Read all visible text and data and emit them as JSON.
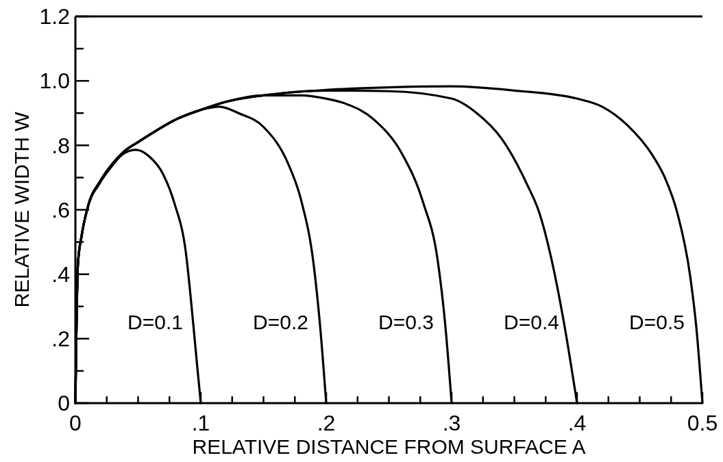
{
  "chart_data": {
    "type": "line",
    "xlabel": "RELATIVE DISTANCE FROM SURFACE A",
    "ylabel": "RELATIVE WIDTH W",
    "xlim": [
      0,
      0.5
    ],
    "ylim": [
      0,
      1.2
    ],
    "xticks": [
      0,
      {
        "value": 0.025,
        "label": null
      },
      {
        "value": 0.05,
        "label": null
      },
      {
        "value": 0.075,
        "label": null
      },
      {
        "value": 0.1,
        "label": ".1"
      },
      {
        "value": 0.125,
        "label": null
      },
      {
        "value": 0.15,
        "label": null
      },
      {
        "value": 0.175,
        "label": null
      },
      {
        "value": 0.2,
        "label": ".2"
      },
      {
        "value": 0.225,
        "label": null
      },
      {
        "value": 0.25,
        "label": null
      },
      {
        "value": 0.275,
        "label": null
      },
      {
        "value": 0.3,
        "label": ".3"
      },
      {
        "value": 0.325,
        "label": null
      },
      {
        "value": 0.35,
        "label": null
      },
      {
        "value": 0.375,
        "label": null
      },
      {
        "value": 0.4,
        "label": ".4"
      },
      {
        "value": 0.425,
        "label": null
      },
      {
        "value": 0.45,
        "label": null
      },
      {
        "value": 0.475,
        "label": null
      },
      {
        "value": 0.5,
        "label": "0.5"
      }
    ],
    "yticks": [
      0,
      {
        "value": 0.1,
        "label": null
      },
      {
        "value": 0.2,
        "label": ".2"
      },
      {
        "value": 0.3,
        "label": null
      },
      {
        "value": 0.4,
        "label": ".4"
      },
      {
        "value": 0.5,
        "label": null
      },
      {
        "value": 0.6,
        "label": ".6"
      },
      {
        "value": 0.7,
        "label": null
      },
      {
        "value": 0.8,
        "label": ".8"
      },
      {
        "value": 0.9,
        "label": null
      },
      {
        "value": 1.0,
        "label": "1.0"
      },
      {
        "value": 1.1,
        "label": null
      },
      {
        "value": 1.2,
        "label": "1.2"
      }
    ],
    "series": [
      {
        "name": "D=0.1",
        "color": "#000000",
        "x": [
          0,
          0.002,
          0.005,
          0.01,
          0.019,
          0.028,
          0.037,
          0.048,
          0.059,
          0.07,
          0.079,
          0.088,
          0.094,
          0.097,
          0.1
        ],
        "values": [
          0,
          0.43,
          0.52,
          0.61,
          0.68,
          0.73,
          0.77,
          0.786,
          0.765,
          0.71,
          0.62,
          0.47,
          0.245,
          0.12,
          0
        ]
      },
      {
        "name": "D=0.2",
        "color": "#000000",
        "x": [
          0,
          0.002,
          0.005,
          0.01,
          0.02,
          0.03,
          0.04,
          0.05,
          0.06,
          0.08,
          0.1,
          0.115,
          0.13,
          0.15,
          0.17,
          0.18,
          0.19,
          0.195,
          0.2
        ],
        "values": [
          0,
          0.43,
          0.52,
          0.61,
          0.69,
          0.745,
          0.785,
          0.81,
          0.835,
          0.88,
          0.91,
          0.92,
          0.9,
          0.857,
          0.74,
          0.63,
          0.43,
          0.245,
          0
        ]
      },
      {
        "name": "D=0.3",
        "color": "#000000",
        "x": [
          0,
          0.002,
          0.005,
          0.01,
          0.02,
          0.03,
          0.04,
          0.05,
          0.06,
          0.08,
          0.1,
          0.12,
          0.15,
          0.18,
          0.2,
          0.215,
          0.238,
          0.261,
          0.277,
          0.289,
          0.295,
          0.3
        ],
        "values": [
          0,
          0.43,
          0.52,
          0.61,
          0.69,
          0.745,
          0.785,
          0.81,
          0.835,
          0.88,
          0.91,
          0.935,
          0.955,
          0.955,
          0.945,
          0.93,
          0.88,
          0.77,
          0.626,
          0.44,
          0.24,
          0
        ]
      },
      {
        "name": "D=0.4",
        "color": "#000000",
        "x": [
          0,
          0.002,
          0.005,
          0.01,
          0.02,
          0.03,
          0.04,
          0.05,
          0.06,
          0.08,
          0.1,
          0.12,
          0.15,
          0.2,
          0.25,
          0.3,
          0.32,
          0.34,
          0.36,
          0.37,
          0.38,
          0.39,
          0.4
        ],
        "values": [
          0,
          0.43,
          0.52,
          0.61,
          0.69,
          0.745,
          0.785,
          0.81,
          0.835,
          0.88,
          0.91,
          0.935,
          0.955,
          0.97,
          0.968,
          0.945,
          0.9,
          0.82,
          0.68,
          0.59,
          0.44,
          0.24,
          0
        ]
      },
      {
        "name": "D=0.5",
        "color": "#000000",
        "x": [
          0,
          0.002,
          0.005,
          0.01,
          0.02,
          0.03,
          0.04,
          0.05,
          0.06,
          0.08,
          0.1,
          0.12,
          0.15,
          0.2,
          0.25,
          0.3,
          0.35,
          0.4,
          0.42,
          0.44,
          0.46,
          0.47,
          0.48,
          0.49,
          0.495,
          0.5
        ],
        "values": [
          0,
          0.43,
          0.52,
          0.61,
          0.69,
          0.745,
          0.785,
          0.81,
          0.835,
          0.88,
          0.91,
          0.935,
          0.955,
          0.972,
          0.98,
          0.983,
          0.97,
          0.945,
          0.92,
          0.863,
          0.77,
          0.7,
          0.59,
          0.4,
          0.24,
          0
        ]
      }
    ]
  }
}
